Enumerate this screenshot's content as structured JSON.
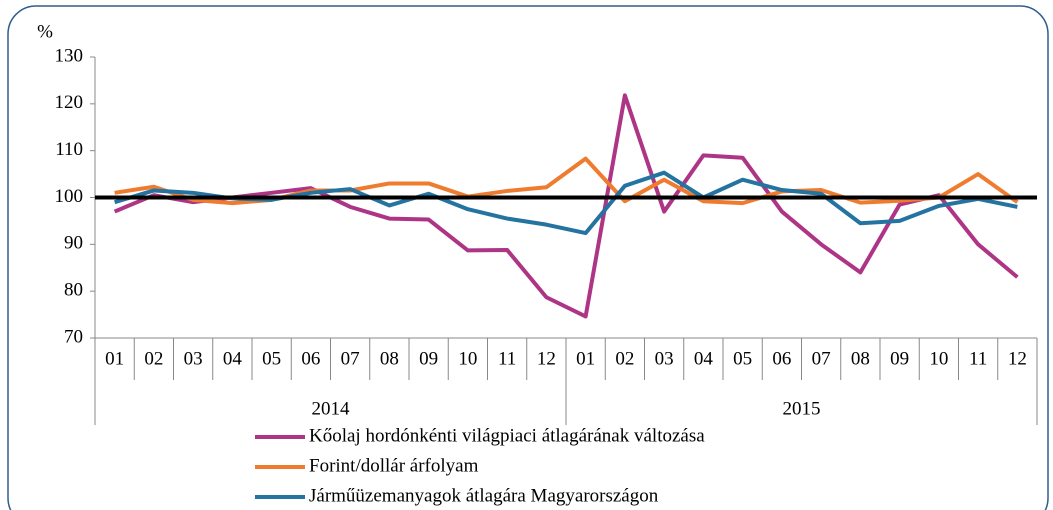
{
  "chart_data": {
    "type": "line",
    "y_label": "%",
    "categories": [
      "01",
      "02",
      "03",
      "04",
      "05",
      "06",
      "07",
      "08",
      "09",
      "10",
      "11",
      "12",
      "01",
      "02",
      "03",
      "04",
      "05",
      "06",
      "07",
      "08",
      "09",
      "10",
      "11",
      "12"
    ],
    "category_groups": [
      "2014",
      "2015"
    ],
    "series": [
      {
        "name": "Kőolaj hordónkénti világpiaci átlagárának változása",
        "color": "#ae3485",
        "values": [
          97,
          100.5,
          99,
          100,
          101,
          102,
          98,
          95.5,
          95.3,
          88.7,
          88.8,
          78.7,
          74.6,
          121.8,
          97,
          109,
          108.5,
          97,
          90,
          84,
          98.5,
          100.5,
          90,
          83
        ]
      },
      {
        "name": "Forint/dollár árfolyam",
        "color": "#ef7b2f",
        "values": [
          101,
          102.3,
          99.5,
          98.8,
          99.5,
          101.5,
          101.5,
          103,
          103,
          100.2,
          101.4,
          102.2,
          108.3,
          99.2,
          103.8,
          99.2,
          98.8,
          101.3,
          101.6,
          98.9,
          99.3,
          100,
          105,
          99
        ]
      },
      {
        "name": "Járműüzemanyagok átlagára Magyarországon",
        "color": "#2473a1",
        "values": [
          99,
          101.5,
          101,
          99.8,
          99.5,
          101,
          101.8,
          98.3,
          100.8,
          97.5,
          95.5,
          94.2,
          92.4,
          102.5,
          105.3,
          100,
          103.8,
          101.6,
          100.8,
          94.5,
          95,
          98.2,
          99.7,
          98
        ]
      }
    ],
    "reference_line": 100,
    "ylim": [
      70,
      130
    ],
    "yticks": [
      70,
      80,
      90,
      100,
      110,
      120,
      130
    ]
  }
}
